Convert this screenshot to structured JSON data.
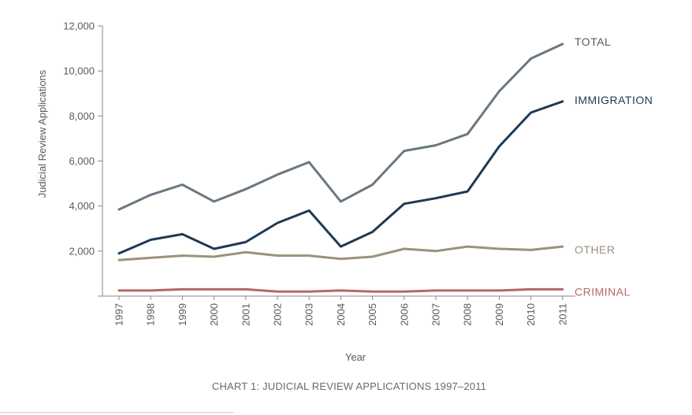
{
  "chart_data": {
    "type": "line",
    "title": "",
    "caption": "CHART 1: JUDICIAL REVIEW APPLICATIONS 1997–2011",
    "xlabel": "Year",
    "ylabel": "Judicial Review Applications",
    "ylim": [
      0,
      12000
    ],
    "yticks": [
      0,
      2000,
      4000,
      6000,
      8000,
      10000,
      12000
    ],
    "ytick_labels": [
      "",
      "2,000",
      "4,000",
      "6,000",
      "8,000",
      "10,000",
      "12,000"
    ],
    "categories": [
      "1997",
      "1998",
      "1999",
      "2000",
      "2001",
      "2002",
      "2003",
      "2004",
      "2005",
      "2006",
      "2007",
      "2008",
      "2009",
      "2010",
      "2011"
    ],
    "grid": false,
    "legend": "direct labels at line ends",
    "series": [
      {
        "name": "TOTAL",
        "color": "#6b7780",
        "label_color": "#555b60",
        "values": [
          3850,
          4500,
          4950,
          4200,
          4750,
          5400,
          5950,
          4200,
          4950,
          6450,
          6700,
          7200,
          9100,
          10550,
          11200
        ]
      },
      {
        "name": "IMMIGRATION",
        "color": "#1e3a56",
        "label_color": "#1e3a56",
        "values": [
          1900,
          2500,
          2750,
          2100,
          2400,
          3250,
          3800,
          2200,
          2850,
          4100,
          4350,
          4650,
          6650,
          8150,
          8650
        ]
      },
      {
        "name": "OTHER",
        "color": "#9c917c",
        "label_color": "#9c917c",
        "values": [
          1600,
          1700,
          1800,
          1750,
          1950,
          1800,
          1800,
          1650,
          1750,
          2100,
          2000,
          2200,
          2100,
          2050,
          2200
        ]
      },
      {
        "name": "CRIMINAL",
        "color": "#b26a61",
        "label_color": "#b26a61",
        "values": [
          250,
          250,
          300,
          300,
          300,
          200,
          200,
          250,
          200,
          200,
          250,
          250,
          250,
          300,
          300
        ]
      }
    ]
  }
}
